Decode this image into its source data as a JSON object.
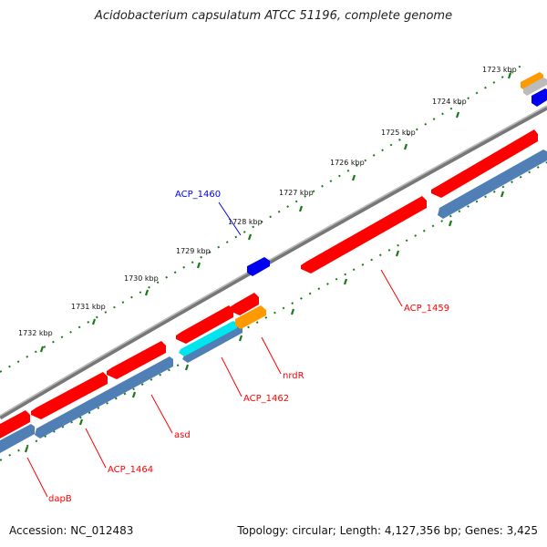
{
  "title": "Acidobacterium capsulatum ATCC 51196, complete genome",
  "footer": {
    "accession": "Accession: NC_012483",
    "stats": "Topology: circular; Length: 4,127,356 bp; Genes: 3,425"
  },
  "scale_labels": [
    "1723 kbp",
    "1724 kbp",
    "1725 kbp",
    "1726 kbp",
    "1727 kbp",
    "1728 kbp",
    "1729 kbp",
    "1730 kbp",
    "1731 kbp",
    "1732 kbp"
  ],
  "gene_labels": {
    "acp1460": "ACP_1460",
    "acp1459": "ACP_1459",
    "nrdr": "nrdR",
    "acp1462": "ACP_1462",
    "asd": "asd",
    "acp1464": "ACP_1464",
    "dapb": "dapB"
  },
  "colors": {
    "gene_red": "#ff0000",
    "gene_blue": "#0000ee",
    "gene_steel": "#4f7fb4",
    "gene_orange": "#ff9900",
    "gene_cyan": "#00e5ee",
    "backbone": "#777777",
    "tick": "#1a7a1a"
  }
}
